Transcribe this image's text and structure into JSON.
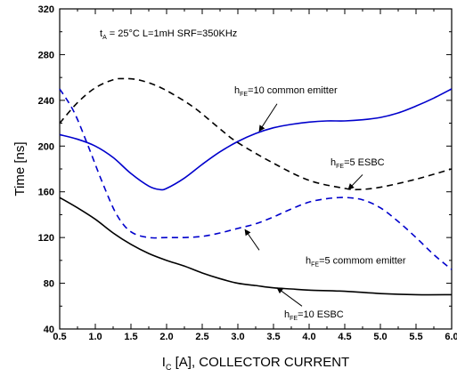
{
  "chart_data": {
    "type": "line",
    "title": "",
    "xlabel": "",
    "xlabel_main": "I",
    "xlabel_sub": "C",
    "xlabel_rest": " [A], COLLECTOR CURRENT",
    "ylabel": "Time [ns]",
    "xlim": [
      0.5,
      6.0
    ],
    "ylim": [
      40,
      320
    ],
    "x_ticks": [
      "0.5",
      "1.0",
      "1.5",
      "2.0",
      "2.5",
      "3.0",
      "3.5",
      "4.0",
      "4.5",
      "5.0",
      "5.5",
      "6.0"
    ],
    "y_ticks": [
      "40",
      "80",
      "120",
      "160",
      "200",
      "240",
      "280",
      "320"
    ],
    "grid": false,
    "condition": {
      "t_main": "t",
      "t_sub": "A",
      "text": " = 25°C L=1mH SRF=350KHz"
    },
    "series": [
      {
        "name": "hFE=10 common emitter",
        "color": "#0000cc",
        "dash": "solid",
        "x": [
          0.5,
          0.75,
          1.0,
          1.25,
          1.5,
          1.75,
          1.9,
          2.0,
          2.25,
          2.5,
          2.75,
          3.0,
          3.25,
          3.5,
          3.75,
          4.0,
          4.25,
          4.5,
          4.75,
          5.0,
          5.25,
          5.5,
          5.75,
          6.0
        ],
        "y": [
          210,
          206,
          200,
          190,
          176,
          165,
          162,
          163,
          172,
          184,
          195,
          204,
          211,
          216,
          219,
          221,
          222,
          222,
          223,
          225,
          229,
          235,
          242,
          250
        ]
      },
      {
        "name": "hFE=5 ESBC",
        "color": "#000000",
        "dash": "dashed",
        "x": [
          0.5,
          0.75,
          1.0,
          1.25,
          1.4,
          1.6,
          1.85,
          2.1,
          2.4,
          2.75,
          3.0,
          3.5,
          4.0,
          4.5,
          4.7,
          5.0,
          5.5,
          6.0
        ],
        "y": [
          220,
          238,
          251,
          258,
          259,
          258,
          253,
          245,
          233,
          215,
          203,
          185,
          170,
          163,
          162,
          164,
          171,
          180
        ]
      },
      {
        "name": "hFE=5 commom emitter",
        "color": "#0000cc",
        "dash": "dashed",
        "x": [
          0.5,
          0.7,
          0.9,
          1.1,
          1.3,
          1.5,
          1.75,
          2.0,
          2.25,
          2.5,
          2.75,
          3.0,
          3.25,
          3.5,
          3.75,
          4.0,
          4.25,
          4.5,
          4.75,
          5.0,
          5.25,
          5.5,
          5.75,
          6.0
        ],
        "y": [
          250,
          230,
          200,
          168,
          140,
          125,
          120,
          120,
          120,
          121,
          124,
          128,
          132,
          138,
          145,
          151,
          154,
          155,
          153,
          146,
          134,
          120,
          105,
          92
        ]
      },
      {
        "name": "hFE=10 ESBC",
        "color": "#000000",
        "dash": "solid",
        "x": [
          0.5,
          0.75,
          1.0,
          1.25,
          1.5,
          1.75,
          2.0,
          2.25,
          2.5,
          2.75,
          3.0,
          3.25,
          3.5,
          3.75,
          4.0,
          4.5,
          5.0,
          5.5,
          6.0
        ],
        "y": [
          155,
          146,
          136,
          124,
          114,
          106,
          100,
          95,
          89,
          84,
          80,
          78,
          76,
          75,
          74,
          73,
          71,
          70,
          70
        ]
      }
    ],
    "annotations": [
      {
        "label_main": "h",
        "label_sub": "FE",
        "label_rest": "=10 common emitter",
        "text_x": 2.95,
        "text_y": 246,
        "arrow_from": [
          3.55,
          237
        ],
        "arrow_to": [
          3.3,
          213
        ]
      },
      {
        "label_main": "h",
        "label_sub": "FE",
        "label_rest": "=5 ESBC",
        "text_x": 4.3,
        "text_y": 183,
        "arrow_from": [
          4.75,
          175
        ],
        "arrow_to": [
          4.55,
          162
        ]
      },
      {
        "label_main": "h",
        "label_sub": "FE",
        "label_rest": "=5 commom emitter",
        "text_x": 3.95,
        "text_y": 97,
        "arrow_from": [
          3.3,
          109
        ],
        "arrow_to": [
          3.1,
          127
        ]
      },
      {
        "label_main": "h",
        "label_sub": "FE",
        "label_rest": "=10 ESBC",
        "text_x": 3.65,
        "text_y": 50,
        "arrow_from": [
          3.9,
          60
        ],
        "arrow_to": [
          3.55,
          76
        ]
      }
    ]
  }
}
